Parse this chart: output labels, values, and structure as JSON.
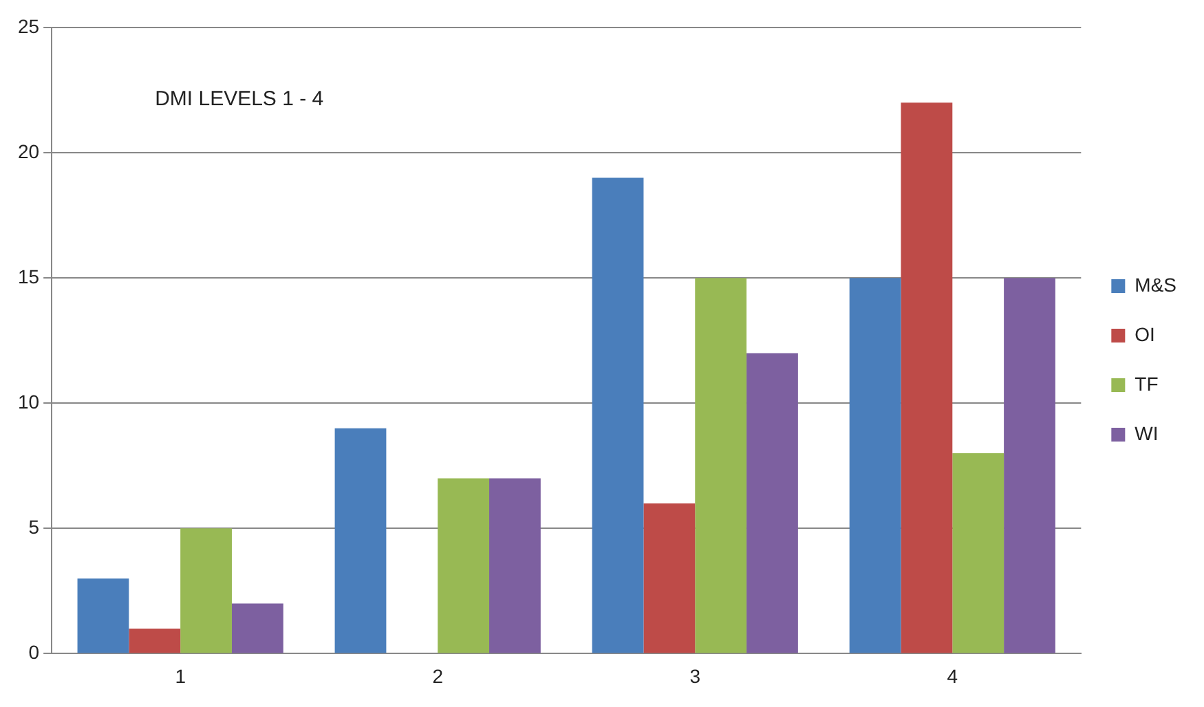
{
  "chart_data": {
    "type": "bar",
    "annotations": [
      "DMI LEVELS 1 - 4"
    ],
    "categories": [
      "1",
      "2",
      "3",
      "4"
    ],
    "series": [
      {
        "name": "M&S",
        "color": "#4a7ebb",
        "values": [
          3,
          9,
          19,
          15
        ]
      },
      {
        "name": "OI",
        "color": "#be4b48",
        "values": [
          1,
          null,
          6,
          22
        ]
      },
      {
        "name": "TF",
        "color": "#98b954",
        "values": [
          5,
          7,
          15,
          8
        ]
      },
      {
        "name": "WI",
        "color": "#7d60a0",
        "values": [
          2,
          7,
          12,
          15
        ]
      }
    ],
    "ylim": [
      0,
      25
    ],
    "yticks": [
      0,
      5,
      10,
      15,
      20,
      25
    ],
    "grid": "y",
    "legend": "right"
  }
}
